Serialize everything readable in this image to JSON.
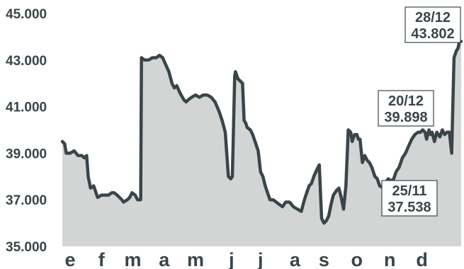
{
  "chart_data": {
    "type": "area",
    "title": "",
    "xlabel": "",
    "ylabel": "",
    "ylim": [
      35000,
      45000
    ],
    "x_range": [
      0,
      51
    ],
    "y_ticks": [
      {
        "value": 35000,
        "label": "35.000"
      },
      {
        "value": 37000,
        "label": "37.000"
      },
      {
        "value": 39000,
        "label": "39.000"
      },
      {
        "value": 41000,
        "label": "41.000"
      },
      {
        "value": 43000,
        "label": "43.000"
      },
      {
        "value": 45000,
        "label": "45.000"
      }
    ],
    "x_ticks": [
      {
        "value": 1.0,
        "label": "e"
      },
      {
        "value": 5.0,
        "label": "f"
      },
      {
        "value": 9.0,
        "label": "m"
      },
      {
        "value": 13.0,
        "label": "a"
      },
      {
        "value": 17.0,
        "label": "m"
      },
      {
        "value": 21.6,
        "label": "j"
      },
      {
        "value": 25.3,
        "label": "j"
      },
      {
        "value": 29.7,
        "label": "a"
      },
      {
        "value": 33.4,
        "label": "s"
      },
      {
        "value": 37.6,
        "label": "o"
      },
      {
        "value": 41.8,
        "label": "n"
      },
      {
        "value": 45.9,
        "label": "d"
      }
    ],
    "series": [
      {
        "color": "#3a4549",
        "fill": "#d3d5d5",
        "x": [
          0,
          0.3,
          0.5,
          1.0,
          1.5,
          2.0,
          2.5,
          2.8,
          3.1,
          3.3,
          3.6,
          4.0,
          4.5,
          5.0,
          5.5,
          5.9,
          6.3,
          6.6,
          7.0,
          7.6,
          7.8,
          8.3,
          8.6,
          8.9,
          9.3,
          9.6,
          10.0,
          10.1,
          10.5,
          11.0,
          11.5,
          12.0,
          12.4,
          12.8,
          13.2,
          13.6,
          14.0,
          14.3,
          14.6,
          15.0,
          15.5,
          15.8,
          16.1,
          16.5,
          17.0,
          17.5,
          18.0,
          18.5,
          19.0,
          19.5,
          20.0,
          20.4,
          20.8,
          21.2,
          21.5,
          21.7,
          22.0,
          22.1,
          22.4,
          22.7,
          23.0,
          23.2,
          23.4,
          23.6,
          24.0,
          24.3,
          24.6,
          25.0,
          25.3,
          25.6,
          25.9,
          26.2,
          26.5,
          26.9,
          27.3,
          27.7,
          28.1,
          28.5,
          29.0,
          29.5,
          30.0,
          30.5,
          30.9,
          31.2,
          31.5,
          31.8,
          32.1,
          32.5,
          32.8,
          33.1,
          33.4,
          33.7,
          34.0,
          34.3,
          34.6,
          35.0,
          35.3,
          35.6,
          35.9,
          36.2,
          36.5,
          36.8,
          37.0,
          37.3,
          37.6,
          37.8,
          38.0,
          38.3,
          38.6,
          38.9,
          39.2,
          39.5,
          39.9,
          40.2,
          40.5,
          40.8,
          41.2,
          41.6,
          42.0,
          42.3,
          42.6,
          43.0,
          43.4,
          43.8,
          44.2,
          44.6,
          45.0,
          45.4,
          45.7,
          46.0,
          46.3,
          46.5,
          46.8,
          47.0,
          47.2,
          47.5,
          47.8,
          48.0,
          48.2,
          48.5,
          48.8,
          49.1,
          49.4,
          49.7,
          50.0,
          50.3,
          50.5,
          50.7,
          50.9
        ],
        "values": [
          39.5,
          39.4,
          39.0,
          39.0,
          39.1,
          38.9,
          38.9,
          38.8,
          38.9,
          38.0,
          37.5,
          37.6,
          37.1,
          37.2,
          37.2,
          37.2,
          37.3,
          37.3,
          37.2,
          37.0,
          36.9,
          37.0,
          37.1,
          37.3,
          37.2,
          37.0,
          37.0,
          43.1,
          43.0,
          43.0,
          43.1,
          43.1,
          43.2,
          43.1,
          42.8,
          42.5,
          42.0,
          41.8,
          41.9,
          41.6,
          41.3,
          41.2,
          41.3,
          41.4,
          41.5,
          41.4,
          41.5,
          41.5,
          41.4,
          41.2,
          40.8,
          40.4,
          39.9,
          38.0,
          37.9,
          38.0,
          42.3,
          42.5,
          42.2,
          42.1,
          42.0,
          40.4,
          40.3,
          40.1,
          40.0,
          39.8,
          39.5,
          39.1,
          38.2,
          38.0,
          37.6,
          37.3,
          37.0,
          37.0,
          36.9,
          36.8,
          36.7,
          36.9,
          36.9,
          36.7,
          36.6,
          36.5,
          37.0,
          37.3,
          37.6,
          37.7,
          38.0,
          38.3,
          38.5,
          36.2,
          36.0,
          36.1,
          36.3,
          36.8,
          37.2,
          37.4,
          37.5,
          37.1,
          36.6,
          37.6,
          40.0,
          39.9,
          39.5,
          39.8,
          39.8,
          39.6,
          39.6,
          38.6,
          38.9,
          38.7,
          38.6,
          38.4,
          38.0,
          37.9,
          37.6,
          37.538,
          37.7,
          37.9,
          37.8,
          37.9,
          38.2,
          38.4,
          38.8,
          39.0,
          39.3,
          39.6,
          39.8,
          39.9,
          39.898,
          40.0,
          39.9,
          39.6,
          40.0,
          39.8,
          39.898,
          39.5,
          39.9,
          39.8,
          39.7,
          40.0,
          39.8,
          39.9,
          39.9,
          39.0,
          43.1,
          43.4,
          43.5,
          43.802,
          43.8
        ],
        "value_scale": 1000
      }
    ],
    "annotations": [
      {
        "date": "28/12",
        "value": "43.802"
      },
      {
        "date": "20/12",
        "value": "39.898"
      },
      {
        "date": "25/11",
        "value": "37.538"
      }
    ],
    "grid": false,
    "legend": "none"
  }
}
